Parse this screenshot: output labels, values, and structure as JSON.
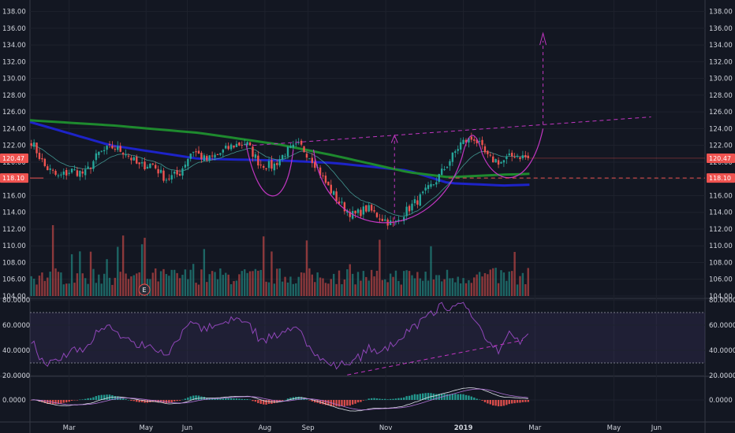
{
  "chart_data": [
    {
      "type": "candlestick",
      "panel": "price",
      "y_ticks": [
        "104.00",
        "106.00",
        "108.00",
        "110.00",
        "112.00",
        "114.00",
        "116.00",
        "118.00",
        "120.00",
        "122.00",
        "124.00",
        "126.00",
        "128.00",
        "130.00",
        "132.00",
        "134.00",
        "136.00",
        "138.00"
      ],
      "ylim": [
        104,
        139
      ],
      "x_labels": [
        "Mar",
        "May",
        "Jun",
        "Aug",
        "Sep",
        "Nov",
        "2019",
        "Mar",
        "May",
        "Jun"
      ],
      "last_price_label": "120.47",
      "level_label": "118.10",
      "level_value": 118.1,
      "event_marker": "E",
      "anchors": [
        {
          "x": 0.0,
          "y": 122.5
        },
        {
          "x": 0.02,
          "y": 119.5
        },
        {
          "x": 0.04,
          "y": 118.2
        },
        {
          "x": 0.06,
          "y": 119.0
        },
        {
          "x": 0.08,
          "y": 118.6
        },
        {
          "x": 0.1,
          "y": 121.0
        },
        {
          "x": 0.12,
          "y": 121.8
        },
        {
          "x": 0.14,
          "y": 121.2
        },
        {
          "x": 0.16,
          "y": 119.5
        },
        {
          "x": 0.18,
          "y": 119.8
        },
        {
          "x": 0.2,
          "y": 118.0
        },
        {
          "x": 0.22,
          "y": 118.6
        },
        {
          "x": 0.24,
          "y": 121.5
        },
        {
          "x": 0.26,
          "y": 120.2
        },
        {
          "x": 0.28,
          "y": 121.0
        },
        {
          "x": 0.3,
          "y": 122.0
        },
        {
          "x": 0.32,
          "y": 122.3
        },
        {
          "x": 0.34,
          "y": 119.8
        },
        {
          "x": 0.36,
          "y": 119.5
        },
        {
          "x": 0.38,
          "y": 121.3
        },
        {
          "x": 0.4,
          "y": 122.0
        },
        {
          "x": 0.42,
          "y": 120.2
        },
        {
          "x": 0.44,
          "y": 117.3
        },
        {
          "x": 0.46,
          "y": 115.0
        },
        {
          "x": 0.48,
          "y": 113.6
        },
        {
          "x": 0.5,
          "y": 114.5
        },
        {
          "x": 0.52,
          "y": 113.4
        },
        {
          "x": 0.54,
          "y": 112.5
        },
        {
          "x": 0.56,
          "y": 114.3
        },
        {
          "x": 0.58,
          "y": 115.8
        },
        {
          "x": 0.6,
          "y": 117.5
        },
        {
          "x": 0.62,
          "y": 119.8
        },
        {
          "x": 0.64,
          "y": 122.3
        },
        {
          "x": 0.66,
          "y": 122.9
        },
        {
          "x": 0.68,
          "y": 120.5
        },
        {
          "x": 0.7,
          "y": 120.0
        },
        {
          "x": 0.72,
          "y": 120.9
        },
        {
          "x": 0.74,
          "y": 120.47
        }
      ],
      "moving_averages": [
        {
          "color": "#1d23c8",
          "anchors": [
            {
              "x": 0.0,
              "y": 124.8
            },
            {
              "x": 0.12,
              "y": 122.0
            },
            {
              "x": 0.25,
              "y": 120.4
            },
            {
              "x": 0.37,
              "y": 120.2
            },
            {
              "x": 0.45,
              "y": 119.9
            },
            {
              "x": 0.56,
              "y": 119.0
            },
            {
              "x": 0.62,
              "y": 117.5
            },
            {
              "x": 0.7,
              "y": 117.2
            },
            {
              "x": 0.74,
              "y": 117.3
            }
          ]
        },
        {
          "color": "#1e8a2e",
          "anchors": [
            {
              "x": 0.0,
              "y": 125.0
            },
            {
              "x": 0.12,
              "y": 124.4
            },
            {
              "x": 0.25,
              "y": 123.5
            },
            {
              "x": 0.37,
              "y": 122.1
            },
            {
              "x": 0.45,
              "y": 120.8
            },
            {
              "x": 0.56,
              "y": 118.8
            },
            {
              "x": 0.62,
              "y": 118.2
            },
            {
              "x": 0.7,
              "y": 118.5
            },
            {
              "x": 0.74,
              "y": 118.6
            }
          ]
        }
      ],
      "annotations": {
        "color": "#c236c2",
        "trendline": [
          {
            "x": 0.33,
            "y": 122.0
          },
          {
            "x": 0.92,
            "y": 125.4
          }
        ],
        "projection_arrow_horizontal_x": 0.54,
        "projection_arrow_vertical_x": 0.76
      }
    },
    {
      "type": "bar",
      "panel": "volume",
      "series": "volume",
      "colors": {
        "up": "#26a69a",
        "down": "#ef5350"
      }
    },
    {
      "type": "line",
      "panel": "RSI",
      "y_ticks": [
        "20.0000",
        "40.0000",
        "60.0000",
        "80.0000"
      ],
      "ylim": [
        20,
        80
      ],
      "bands": [
        30,
        70
      ],
      "color": "#8f46b8"
    },
    {
      "type": "bar",
      "panel": "MACD",
      "y_ticks": [
        "0.0000"
      ],
      "colors": {
        "up": "#26a69a",
        "down": "#ef5350",
        "line": "#e0e3eb",
        "signal": "#b073d6"
      }
    }
  ]
}
